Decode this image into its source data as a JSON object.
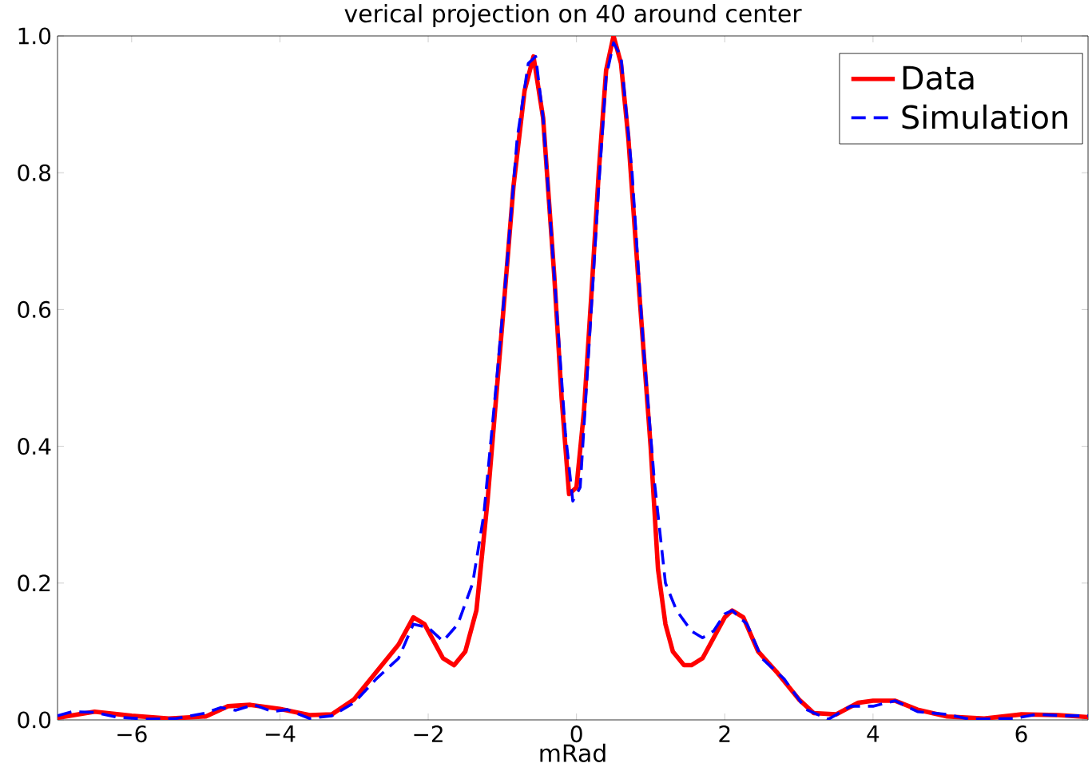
{
  "chart_data": {
    "type": "line",
    "title": "verical projection on 40 around center",
    "xlabel": "mRad",
    "xlim": [
      -7,
      6.9
    ],
    "xticks": [
      {
        "value": -6,
        "label": "−6"
      },
      {
        "value": -4,
        "label": "−4"
      },
      {
        "value": -2,
        "label": "−2"
      },
      0,
      2,
      4,
      6
    ],
    "ylim": [
      0,
      1
    ],
    "yticks": [
      {
        "value": 0,
        "label": "0.0"
      },
      0.2,
      0.4,
      0.6,
      0.8,
      {
        "value": 1,
        "label": "1.0"
      }
    ],
    "legend": "top right",
    "grid": false,
    "series": [
      {
        "name": "Data",
        "color": "#ff0000",
        "line_style": "solid",
        "x": [
          -7.0,
          -6.5,
          -6.0,
          -5.5,
          -5.0,
          -4.7,
          -4.4,
          -4.0,
          -3.6,
          -3.3,
          -3.0,
          -2.7,
          -2.4,
          -2.2,
          -2.05,
          -1.9,
          -1.8,
          -1.65,
          -1.5,
          -1.35,
          -1.2,
          -1.0,
          -0.85,
          -0.7,
          -0.58,
          -0.45,
          -0.3,
          -0.2,
          -0.1,
          0.0,
          0.1,
          0.2,
          0.3,
          0.4,
          0.5,
          0.6,
          0.7,
          0.85,
          1.0,
          1.1,
          1.2,
          1.3,
          1.45,
          1.55,
          1.7,
          1.85,
          2.0,
          2.1,
          2.25,
          2.45,
          2.7,
          3.0,
          3.2,
          3.5,
          3.8,
          4.0,
          4.3,
          4.6,
          5.0,
          5.5,
          6.0,
          6.5,
          6.9
        ],
        "values": [
          0.003,
          0.012,
          0.006,
          0.002,
          0.005,
          0.02,
          0.022,
          0.016,
          0.007,
          0.008,
          0.03,
          0.07,
          0.11,
          0.15,
          0.14,
          0.11,
          0.09,
          0.08,
          0.1,
          0.16,
          0.32,
          0.58,
          0.78,
          0.92,
          0.97,
          0.88,
          0.65,
          0.47,
          0.33,
          0.34,
          0.45,
          0.62,
          0.8,
          0.95,
          1.0,
          0.96,
          0.85,
          0.62,
          0.4,
          0.22,
          0.14,
          0.1,
          0.08,
          0.08,
          0.09,
          0.12,
          0.15,
          0.16,
          0.15,
          0.1,
          0.07,
          0.03,
          0.01,
          0.008,
          0.025,
          0.028,
          0.028,
          0.015,
          0.005,
          0.002,
          0.008,
          0.007,
          0.004
        ]
      },
      {
        "name": "Simulation",
        "color": "#0000ff",
        "line_style": "dashed",
        "x": [
          -7.0,
          -6.8,
          -6.5,
          -6.2,
          -5.8,
          -5.4,
          -5.0,
          -4.8,
          -4.6,
          -4.35,
          -4.1,
          -3.9,
          -3.6,
          -3.3,
          -3.0,
          -2.7,
          -2.4,
          -2.2,
          -2.0,
          -1.8,
          -1.6,
          -1.4,
          -1.25,
          -1.1,
          -0.95,
          -0.8,
          -0.65,
          -0.55,
          -0.45,
          -0.3,
          -0.15,
          -0.05,
          0.05,
          0.2,
          0.3,
          0.4,
          0.5,
          0.6,
          0.75,
          0.9,
          1.05,
          1.2,
          1.35,
          1.55,
          1.7,
          1.85,
          2.0,
          2.1,
          2.3,
          2.5,
          2.8,
          3.1,
          3.4,
          3.7,
          4.0,
          4.3,
          4.6,
          5.0,
          5.3,
          5.9,
          6.2,
          6.6,
          6.9
        ],
        "values": [
          0.006,
          0.012,
          0.011,
          0.004,
          0.001,
          0.002,
          0.01,
          0.018,
          0.014,
          0.022,
          0.012,
          0.015,
          0.002,
          0.006,
          0.025,
          0.06,
          0.09,
          0.14,
          0.135,
          0.115,
          0.14,
          0.2,
          0.3,
          0.47,
          0.65,
          0.85,
          0.96,
          0.97,
          0.88,
          0.65,
          0.42,
          0.32,
          0.34,
          0.6,
          0.78,
          0.94,
          0.99,
          0.97,
          0.8,
          0.55,
          0.35,
          0.2,
          0.16,
          0.13,
          0.12,
          0.13,
          0.155,
          0.16,
          0.14,
          0.09,
          0.06,
          0.015,
          0.001,
          0.02,
          0.02,
          0.028,
          0.012,
          0.008,
          0.001,
          0.002,
          0.008,
          0.006,
          0.006
        ]
      }
    ]
  }
}
